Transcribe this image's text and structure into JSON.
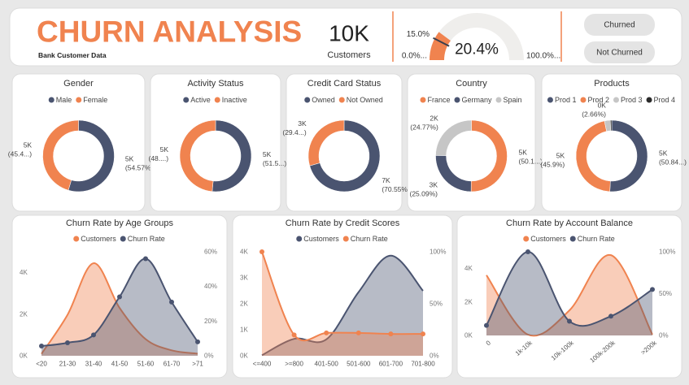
{
  "header": {
    "title": "CHURN ANALYSIS",
    "subtitle": "Bank Customer Data"
  },
  "kpi": {
    "value": "10K",
    "label": "Customers"
  },
  "buttons": [
    "Churned",
    "Not Churned"
  ],
  "chart_data": [
    {
      "type": "gauge",
      "value": 20.4,
      "value_label": "20.4%",
      "target": 15,
      "target_label": "15.0%",
      "min": {
        "value": 0,
        "label": "0.0%..."
      },
      "max": {
        "value": 100,
        "label": "100.0%..."
      },
      "color": "#f0834f",
      "track_color": "#efeeec",
      "target_color": "#3a3f4d"
    },
    {
      "type": "donut",
      "title": "Gender",
      "categories": [
        "Male",
        "Female"
      ],
      "colors": [
        "#4a5470",
        "#f0834f"
      ],
      "values": [
        5457,
        4543
      ],
      "value_labels": [
        [
          "5K",
          "(54.57%)"
        ],
        [
          "5K",
          "(45.4...)"
        ]
      ]
    },
    {
      "type": "donut",
      "title": "Activity Status",
      "categories": [
        "Active",
        "Inactive"
      ],
      "colors": [
        "#4a5470",
        "#f0834f"
      ],
      "values": [
        5151,
        4849
      ],
      "value_labels": [
        [
          "5K",
          "(51.5...)"
        ],
        [
          "5K",
          "(48....)"
        ]
      ]
    },
    {
      "type": "donut",
      "title": "Credit Card Status",
      "categories": [
        "Owned",
        "Not Owned"
      ],
      "colors": [
        "#4a5470",
        "#f0834f"
      ],
      "values": [
        7055,
        2945
      ],
      "value_labels": [
        [
          "7K",
          "(70.55%)"
        ],
        [
          "3K",
          "(29.4...)"
        ]
      ]
    },
    {
      "type": "donut",
      "title": "Country",
      "categories": [
        "France",
        "Germany",
        "Spain"
      ],
      "colors": [
        "#f0834f",
        "#4a5470",
        "#c6c6c6"
      ],
      "values": [
        5014,
        2509,
        2477
      ],
      "value_labels": [
        [
          "5K",
          "(50.1...)"
        ],
        [
          "3K",
          "(25.09%)"
        ],
        [
          "2K",
          "(24.77%)"
        ]
      ]
    },
    {
      "type": "donut",
      "title": "Products",
      "categories": [
        "Prod 1",
        "Prod 2",
        "Prod 3",
        "Prod 4"
      ],
      "colors": [
        "#4a5470",
        "#f0834f",
        "#c6c6c6",
        "#2b2b2b"
      ],
      "values": [
        5084,
        4590,
        266,
        60
      ],
      "value_labels": [
        [
          "5K",
          "(50.84...)"
        ],
        [
          "5K",
          "(45.9%)"
        ],
        [
          "0K",
          "(2.66%)"
        ],
        null
      ]
    },
    {
      "type": "area",
      "title": "Churn Rate by Age Groups",
      "categories": [
        "<20",
        "21-30",
        "31-40",
        "41-50",
        "51-60",
        "61-70",
        ">71"
      ],
      "series": [
        {
          "name": "Customers",
          "color": "#f0834f",
          "values": [
            90,
            1970,
            4450,
            2300,
            800,
            260,
            100
          ]
        },
        {
          "name": "Churn Rate",
          "color": "#4a5470",
          "axis": "y2",
          "values": [
            5.6,
            7.5,
            12,
            34,
            56,
            31,
            8
          ]
        }
      ],
      "ylim": [
        0,
        5000
      ],
      "yticks": [
        {
          "value": 0,
          "label": "0K"
        },
        {
          "value": 2000,
          "label": "2K"
        },
        {
          "value": 4000,
          "label": "4K"
        }
      ],
      "y2lim": [
        0,
        60
      ],
      "y2ticks": [
        {
          "value": 0,
          "label": "0%"
        },
        {
          "value": 20,
          "label": "20%"
        },
        {
          "value": 40,
          "label": "40%"
        },
        {
          "value": 60,
          "label": "60%"
        }
      ]
    },
    {
      "type": "area",
      "title": "Churn Rate by Credit Scores",
      "categories": [
        "<=400",
        ">=800",
        "401-500",
        "501-600",
        "601-700",
        "701-800"
      ],
      "series": [
        {
          "name": "Customers",
          "color": "#4a5470",
          "values": [
            20,
            650,
            630,
            2450,
            3850,
            2500
          ]
        },
        {
          "name": "Churn Rate",
          "color": "#f0834f",
          "axis": "y2",
          "values": [
            100,
            20,
            22,
            22,
            21,
            21
          ]
        }
      ],
      "ylim": [
        0,
        4000
      ],
      "yticks": [
        {
          "value": 0,
          "label": "0K"
        },
        {
          "value": 1000,
          "label": "1K"
        },
        {
          "value": 2000,
          "label": "2K"
        },
        {
          "value": 3000,
          "label": "3K"
        },
        {
          "value": 4000,
          "label": "4K"
        }
      ],
      "y2lim": [
        0,
        100
      ],
      "y2ticks": [
        {
          "value": 0,
          "label": "0%"
        },
        {
          "value": 50,
          "label": "50%"
        },
        {
          "value": 100,
          "label": "100%"
        }
      ]
    },
    {
      "type": "area",
      "title": "Churn Rate by Account Balance",
      "categories": [
        "0",
        "1k-10k",
        "10k-100k",
        "100k-200k",
        ">200k"
      ],
      "series": [
        {
          "name": "Customers",
          "color": "#f0834f",
          "values": [
            3600,
            50,
            1500,
            4800,
            50
          ]
        },
        {
          "name": "Churn Rate",
          "color": "#4a5470",
          "axis": "y2",
          "values": [
            12,
            100,
            17,
            23,
            55
          ]
        }
      ],
      "ylim": [
        0,
        5000
      ],
      "yticks": [
        {
          "value": 0,
          "label": "0K"
        },
        {
          "value": 2000,
          "label": "2K"
        },
        {
          "value": 4000,
          "label": "4K"
        }
      ],
      "y2lim": [
        0,
        100
      ],
      "y2ticks": [
        {
          "value": 0,
          "label": "0%"
        },
        {
          "value": 50,
          "label": "50%"
        },
        {
          "value": 100,
          "label": "100%"
        }
      ],
      "rotate_x_labels": true
    }
  ]
}
